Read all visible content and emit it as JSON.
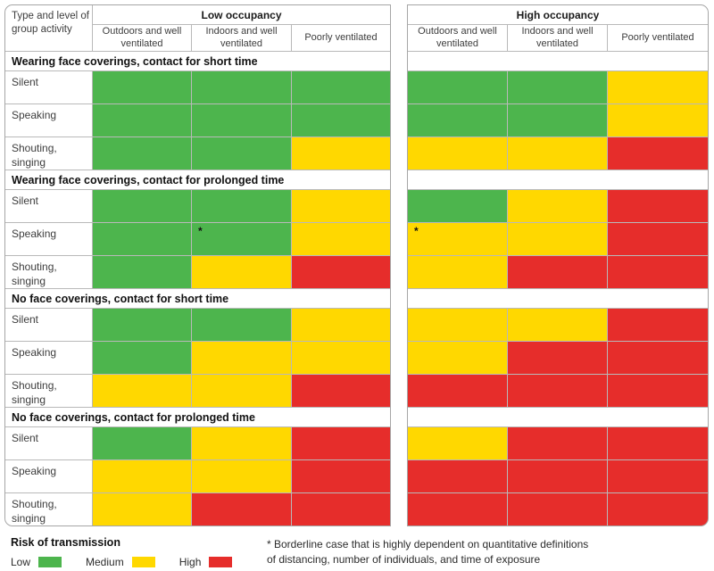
{
  "chart_data": {
    "type": "heatmap",
    "corner_label": "Type and level of group activity",
    "col_groups": [
      {
        "label": "Low occupancy",
        "columns": [
          "Outdoors and well ventilated",
          "Indoors and well ventilated",
          "Poorly ventilated"
        ]
      },
      {
        "label": "High occupancy",
        "columns": [
          "Outdoors and well ventilated",
          "Indoors and well ventilated",
          "Poorly ventilated"
        ]
      }
    ],
    "risk_levels": [
      "low",
      "medium",
      "high"
    ],
    "colors": {
      "low": "#4db54d",
      "medium": "#ffd800",
      "high": "#e62d2b"
    },
    "footnote_marker": "*",
    "sections": [
      {
        "title": "Wearing face coverings, contact for short time",
        "rows": [
          {
            "label": "Silent",
            "low_occupancy": [
              "low",
              "low",
              "low"
            ],
            "high_occupancy": [
              "low",
              "low",
              "medium"
            ]
          },
          {
            "label": "Speaking",
            "low_occupancy": [
              "low",
              "low",
              "low"
            ],
            "high_occupancy": [
              "low",
              "low",
              "medium"
            ]
          },
          {
            "label": "Shouting, singing",
            "low_occupancy": [
              "low",
              "low",
              "medium"
            ],
            "high_occupancy": [
              "medium",
              "medium",
              "high"
            ]
          }
        ]
      },
      {
        "title": "Wearing face coverings, contact for prolonged time",
        "rows": [
          {
            "label": "Silent",
            "low_occupancy": [
              "low",
              "low",
              "medium"
            ],
            "high_occupancy": [
              "low",
              "medium",
              "high"
            ]
          },
          {
            "label": "Speaking",
            "low_occupancy": [
              "low",
              "low*",
              "medium"
            ],
            "high_occupancy": [
              "medium*",
              "medium",
              "high"
            ]
          },
          {
            "label": "Shouting, singing",
            "low_occupancy": [
              "low",
              "medium",
              "high"
            ],
            "high_occupancy": [
              "medium",
              "high",
              "high"
            ]
          }
        ]
      },
      {
        "title": "No face coverings, contact for short time",
        "rows": [
          {
            "label": "Silent",
            "low_occupancy": [
              "low",
              "low",
              "medium"
            ],
            "high_occupancy": [
              "medium",
              "medium",
              "high"
            ]
          },
          {
            "label": "Speaking",
            "low_occupancy": [
              "low",
              "medium",
              "medium"
            ],
            "high_occupancy": [
              "medium",
              "high",
              "high"
            ]
          },
          {
            "label": "Shouting, singing",
            "low_occupancy": [
              "medium",
              "medium",
              "high"
            ],
            "high_occupancy": [
              "high",
              "high",
              "high"
            ]
          }
        ]
      },
      {
        "title": "No face coverings, contact for prolonged time",
        "rows": [
          {
            "label": "Silent",
            "low_occupancy": [
              "low",
              "medium",
              "high"
            ],
            "high_occupancy": [
              "medium",
              "high",
              "high"
            ]
          },
          {
            "label": "Speaking",
            "low_occupancy": [
              "medium",
              "medium",
              "high"
            ],
            "high_occupancy": [
              "high",
              "high",
              "high"
            ]
          },
          {
            "label": "Shouting, singing",
            "low_occupancy": [
              "medium",
              "high",
              "high"
            ],
            "high_occupancy": [
              "high",
              "high",
              "high"
            ]
          }
        ]
      }
    ]
  },
  "legend": {
    "title": "Risk of transmission",
    "items": [
      {
        "label": "Low",
        "risk": "low"
      },
      {
        "label": "Medium",
        "risk": "medium"
      },
      {
        "label": "High",
        "risk": "high"
      }
    ]
  },
  "footnote": {
    "line1": "* Borderline case that is highly dependent on quantitative definitions",
    "line2": "of distancing, number of individuals, and time of exposure"
  }
}
